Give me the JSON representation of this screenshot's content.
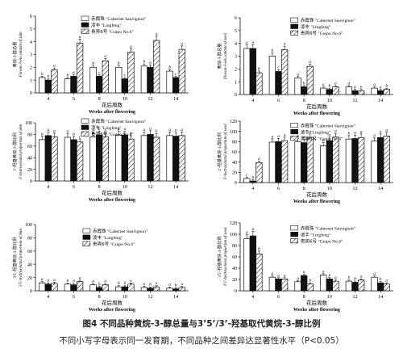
{
  "caption": {
    "line1": "图4  不同品种黄烷-3-醇总量与3’5’/3’-羟基取代黄烷-3-醇比例",
    "line2": "不同小写字母表示同一发育期，不同品种之间差异达显著性水平（P<0.05）"
  },
  "legend": [
    {
      "label_cn": "赤霞珠",
      "label_en": "Cabernet Sauvignon",
      "style": "white"
    },
    {
      "label_cn": "凌丰",
      "label_en": "Lingfeng",
      "style": "black"
    },
    {
      "label_cn": "贵宾6号",
      "label_en": "Guipo No.6",
      "style": "hatch"
    }
  ],
  "colors": {
    "bar_fill_white": "#ffffff",
    "bar_fill_black": "#111111",
    "bar_stroke": "#111111"
  },
  "chart_data": [
    {
      "id": "a",
      "type": "bar",
      "xlabel_cn": "花后周数",
      "xlabel": "Weeks after flowering",
      "ylabel_cn": "黄烷-3-醇总量",
      "ylabel": "Flavan-3-ols content of skin",
      "categories": [
        "4",
        "6",
        "8",
        "10",
        "12",
        "14"
      ],
      "yticks": [
        "0",
        "1",
        "2",
        "3",
        "4",
        "5",
        "6"
      ],
      "ylim": [
        0,
        6
      ],
      "series": [
        {
          "values": [
            1.2,
            1.1,
            2.0,
            2.0,
            2.1,
            1.7
          ],
          "letters": [
            "b",
            "b",
            "b",
            "b",
            "b",
            "b"
          ]
        },
        {
          "values": [
            1.0,
            1.3,
            1.3,
            1.1,
            2.0,
            1.2
          ],
          "letters": [
            "b",
            "b",
            "c",
            "c",
            "b",
            "c"
          ]
        },
        {
          "values": [
            1.8,
            3.9,
            2.5,
            3.2,
            4.1,
            3.4
          ],
          "letters": [
            "a",
            "a",
            "a",
            "a",
            "a",
            "a"
          ]
        }
      ]
    },
    {
      "id": "b",
      "type": "bar",
      "xlabel_cn": "花后周数",
      "xlabel": "Weeks after flowering",
      "ylabel_cn": "黄烷-3-醇总量",
      "ylabel": "Flavan-3-ols content of seed",
      "categories": [
        "4",
        "6",
        "8",
        "10",
        "12",
        "14"
      ],
      "yticks": [
        "0",
        "1",
        "2",
        "3",
        "4",
        "5",
        "6"
      ],
      "ylim": [
        0,
        6
      ],
      "series": [
        {
          "values": [
            3.6,
            3.0,
            1.3,
            0.5,
            0.6,
            0.5
          ],
          "letters": [
            "a",
            "b",
            "a",
            "a",
            "a",
            "a"
          ]
        },
        {
          "values": [
            3.6,
            1.8,
            0.6,
            0.4,
            0.3,
            0.3
          ],
          "letters": [
            "a",
            "c",
            "b",
            "b",
            "b",
            "a"
          ]
        },
        {
          "values": [
            1.7,
            3.5,
            2.2,
            0.6,
            0.3,
            0.4
          ],
          "letters": [
            "b",
            "a",
            "a",
            "a",
            "b",
            "b"
          ]
        }
      ]
    },
    {
      "id": "c",
      "type": "bar",
      "xlabel_cn": "花后周数",
      "xlabel": "Weeks after flowering",
      "ylabel_cn": "3'-羟基黄烷-3-醇比例",
      "ylabel": "3'-hydroxylated proportion of skin",
      "categories": [
        "4",
        "6",
        "8",
        "10",
        "12",
        "14"
      ],
      "yticks": [
        "0",
        "20",
        "40",
        "60",
        "80",
        "100"
      ],
      "ylim": [
        0,
        100
      ],
      "series": [
        {
          "values": [
            71,
            75,
            76,
            79,
            78,
            78
          ],
          "letters": [
            "b",
            "a",
            "b",
            "a",
            "a",
            "a"
          ]
        },
        {
          "values": [
            78,
            71,
            79,
            79,
            80,
            77
          ],
          "letters": [
            "a",
            "b",
            "a",
            "a",
            "a",
            "a"
          ]
        },
        {
          "values": [
            76,
            67,
            76,
            72,
            75,
            78
          ],
          "letters": [
            "a",
            "c",
            "b",
            "b",
            "b",
            "a"
          ]
        }
      ]
    },
    {
      "id": "d",
      "type": "bar",
      "xlabel_cn": "花后周数",
      "xlabel": "Weeks after flowering",
      "ylabel_cn": "3'-羟基黄烷-3-醇比例",
      "ylabel": "3'-hydroxylated proportion of seed",
      "categories": [
        "4",
        "6",
        "8",
        "10",
        "12",
        "14"
      ],
      "yticks": [
        "0",
        "20",
        "40",
        "60",
        "80",
        "100",
        "120"
      ],
      "ylim": [
        0,
        120
      ],
      "series": [
        {
          "values": [
            8,
            79,
            80,
            72,
            85,
            81
          ],
          "letters": [
            "c",
            "a",
            "a",
            "b",
            "b",
            "a"
          ]
        },
        {
          "values": [
            3,
            80,
            78,
            82,
            86,
            88
          ],
          "letters": [
            "b",
            "a",
            "a",
            "a",
            "a",
            "a"
          ]
        },
        {
          "values": [
            39,
            82,
            88,
            89,
            88,
            91
          ],
          "letters": [
            "a",
            "a",
            "a",
            "a",
            "a",
            "a"
          ]
        }
      ]
    },
    {
      "id": "e",
      "type": "bar",
      "xlabel_cn": "花后周数",
      "xlabel": "Weeks after flowering",
      "ylabel_cn": "3'5'-羟基黄烷-3-醇比例",
      "ylabel": "3'5'-hydroxylated proportion of skin",
      "categories": [
        "4",
        "6",
        "8",
        "10",
        "12",
        "14"
      ],
      "yticks": [
        "0",
        "20",
        "40",
        "60",
        "80",
        "100"
      ],
      "ylim": [
        0,
        100
      ],
      "series": [
        {
          "values": [
            12,
            10,
            9,
            6,
            5,
            4
          ],
          "letters": [
            "a",
            "b",
            "a",
            "b",
            "a",
            "a"
          ]
        },
        {
          "values": [
            10,
            9,
            5,
            6,
            4,
            3
          ],
          "letters": [
            "b",
            "b",
            "b",
            "b",
            "b",
            "b"
          ]
        },
        {
          "values": [
            11,
            14,
            9,
            10,
            6,
            5
          ],
          "letters": [
            "a",
            "a",
            "a",
            "a",
            "a",
            "a"
          ]
        }
      ]
    },
    {
      "id": "f",
      "type": "bar",
      "xlabel_cn": "花后周数",
      "xlabel": "Weeks after flowering",
      "ylabel_cn": "3'5'-羟基黄烷-3-醇比例",
      "ylabel": "3'5'-hydroxylated proportion of seed",
      "categories": [
        "4",
        "6",
        "8",
        "10",
        "12",
        "14"
      ],
      "yticks": [
        "0",
        "20",
        "40",
        "60",
        "80",
        "100",
        "120"
      ],
      "ylim": [
        0,
        120
      ],
      "series": [
        {
          "values": [
            92,
            24,
            16,
            28,
            17,
            24
          ],
          "letters": [
            "a",
            "a",
            "a",
            "a",
            "b",
            "a"
          ]
        },
        {
          "values": [
            97,
            21,
            27,
            21,
            15,
            14
          ],
          "letters": [
            "a",
            "a",
            "a",
            "b",
            "b",
            "b"
          ]
        },
        {
          "values": [
            65,
            21,
            12,
            17,
            19,
            12
          ],
          "letters": [
            "b",
            "a",
            "b",
            "a",
            "a",
            "a"
          ]
        }
      ]
    }
  ]
}
